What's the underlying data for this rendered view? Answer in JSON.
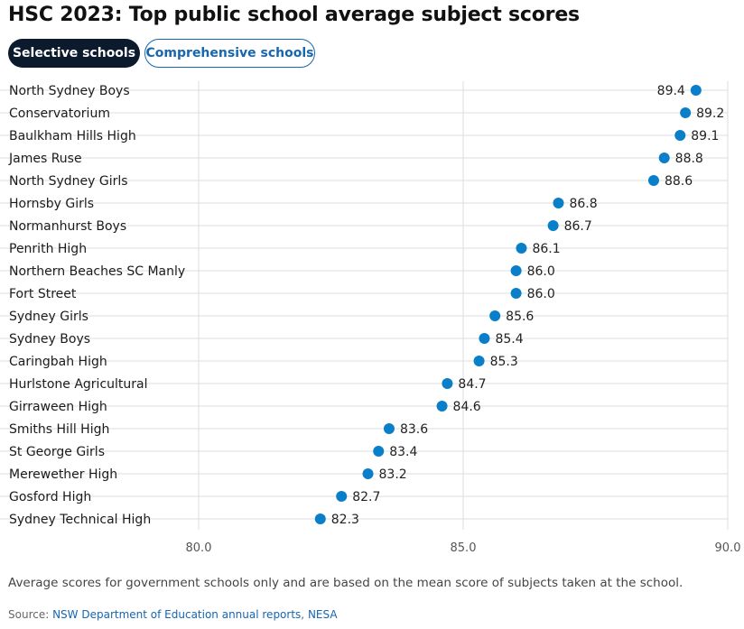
{
  "title": "HSC 2023: Top public school average subject scores",
  "tabs": {
    "active_label": "Selective schools",
    "inactive_label": "Comprehensive schools"
  },
  "colors": {
    "dot": "#0a7fc9",
    "grid": "#dcdcdc",
    "active_tab_bg": "#0c1a2e",
    "link": "#1666b0"
  },
  "chart_data": {
    "type": "scatter",
    "title": "HSC 2023: Top public school average subject scores",
    "xlabel": "",
    "ylabel": "",
    "xlim": [
      80.0,
      90.0
    ],
    "x_ticks": [
      "80.0",
      "85.0",
      "90.0"
    ],
    "x_tick_values": [
      80,
      85,
      90
    ],
    "grid": true,
    "categories": [
      "North Sydney Boys",
      "Conservatorium",
      "Baulkham Hills High",
      "James Ruse",
      "North Sydney Girls",
      "Hornsby Girls",
      "Normanhurst Boys",
      "Penrith High",
      "Northern Beaches SC Manly",
      "Fort Street",
      "Sydney Girls",
      "Sydney Boys",
      "Caringbah High",
      "Hurlstone Agricultural",
      "Girraween High",
      "Smiths Hill High",
      "St George Girls",
      "Merewether High",
      "Gosford High",
      "Sydney Technical High"
    ],
    "values": [
      89.4,
      89.2,
      89.1,
      88.8,
      88.6,
      86.8,
      86.7,
      86.1,
      86.0,
      86.0,
      85.6,
      85.4,
      85.3,
      84.7,
      84.6,
      83.6,
      83.4,
      83.2,
      82.7,
      82.3
    ],
    "value_labels": [
      "89.4",
      "89.2",
      "89.1",
      "88.8",
      "88.6",
      "86.8",
      "86.7",
      "86.1",
      "86.0",
      "86.0",
      "85.6",
      "85.4",
      "85.3",
      "84.7",
      "84.6",
      "83.6",
      "83.4",
      "83.2",
      "82.7",
      "82.3"
    ]
  },
  "caption": "Average scores for government schools only and are based on the mean score of subjects taken at the school.",
  "source": {
    "prefix": "Source: ",
    "link1": "NSW Department of Education annual reports",
    "separator": ", ",
    "link2": "NESA"
  }
}
